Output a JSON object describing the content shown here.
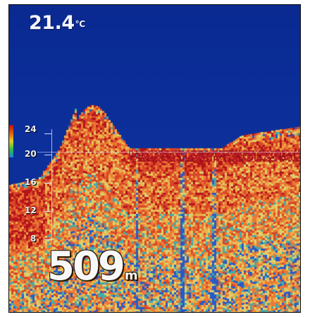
{
  "display": {
    "temperature": {
      "value": "21.4",
      "unit": "℃"
    },
    "depth": {
      "value": "509",
      "unit": "m"
    },
    "scale_labels": [
      "24",
      "20",
      "16",
      "12",
      "8"
    ]
  },
  "colors": {
    "background": "#0b2a8f",
    "echo_strong": "#b8141a",
    "echo_medium": "#e8742a",
    "echo_weak": "#e8c848",
    "echo_faint": "#38b4b4"
  }
}
